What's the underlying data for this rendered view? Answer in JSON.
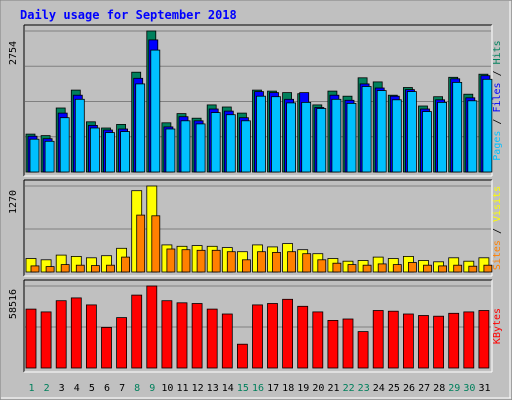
{
  "chart_data": {
    "type": "bar",
    "title": "Daily usage for September 2018",
    "days": [
      1,
      2,
      3,
      4,
      5,
      6,
      7,
      8,
      9,
      10,
      11,
      12,
      13,
      14,
      15,
      16,
      17,
      18,
      19,
      20,
      21,
      22,
      23,
      24,
      25,
      26,
      27,
      28,
      29,
      30,
      31
    ],
    "weekend_days": [
      1,
      2,
      8,
      9,
      15,
      16,
      22,
      23,
      29,
      30
    ],
    "panels": [
      {
        "id": "hits-panel",
        "ymax_label": "2754",
        "ymax": 2754,
        "legend": [
          "Pages",
          "Files",
          "Hits"
        ],
        "legend_colors": [
          "#00C0FF",
          "#0000FF",
          "#00805C"
        ],
        "series": [
          {
            "name": "Hits",
            "color": "#00805C",
            "values": [
              740,
              710,
              1250,
              1600,
              980,
              860,
              930,
              1950,
              2754,
              960,
              1140,
              1050,
              1310,
              1270,
              1150,
              1600,
              1580,
              1550,
              1530,
              1310,
              1580,
              1480,
              1840,
              1760,
              1500,
              1650,
              1290,
              1470,
              1850,
              1520,
              1910
            ]
          },
          {
            "name": "Files",
            "color": "#0000FF",
            "values": [
              700,
              650,
              1150,
              1500,
              910,
              820,
              840,
              1830,
              2580,
              880,
              1080,
              1000,
              1230,
              1190,
              1060,
              1570,
              1550,
              1420,
              1550,
              1260,
              1500,
              1400,
              1720,
              1640,
              1480,
              1610,
              1230,
              1410,
              1820,
              1450,
              1880
            ]
          },
          {
            "name": "Pages",
            "color": "#00C0FF",
            "values": [
              640,
              600,
              1060,
              1420,
              860,
              770,
              790,
              1720,
              2380,
              840,
              1000,
              940,
              1160,
              1120,
              1000,
              1480,
              1470,
              1350,
              1360,
              1240,
              1420,
              1340,
              1670,
              1590,
              1410,
              1570,
              1180,
              1360,
              1750,
              1390,
              1810
            ]
          }
        ]
      },
      {
        "id": "visits-panel",
        "ymax_label": "1270",
        "ymax": 1270,
        "legend": [
          "Sites",
          "Visits"
        ],
        "legend_colors": [
          "#FF8000",
          "#FFFF00"
        ],
        "series": [
          {
            "name": "Visits",
            "color": "#FFFF00",
            "values": [
              200,
              180,
              250,
              230,
              210,
              240,
              350,
              1200,
              1270,
              400,
              380,
              390,
              380,
              360,
              300,
              400,
              370,
              420,
              330,
              270,
              200,
              160,
              170,
              220,
              200,
              230,
              170,
              150,
              210,
              160,
              210
            ]
          },
          {
            "name": "Sites",
            "color": "#FF8000",
            "values": [
              90,
              80,
              110,
              100,
              95,
              100,
              220,
              840,
              830,
              340,
              330,
              320,
              320,
              300,
              180,
              300,
              290,
              300,
              270,
              180,
              130,
              110,
              100,
              120,
              110,
              140,
              100,
              90,
              100,
              85,
              100
            ]
          }
        ]
      },
      {
        "id": "kbytes-panel",
        "ymax_label": "58516",
        "ymax": 58516,
        "legend": [
          "KBytes"
        ],
        "legend_colors": [
          "#FF0000"
        ],
        "series": [
          {
            "name": "KBytes",
            "color": "#FF0000",
            "values": [
              42000,
              40000,
              48000,
              50000,
              45000,
              29000,
              36000,
              52000,
              58516,
              48000,
              46500,
              46000,
              42000,
              38500,
              17000,
              45000,
              46000,
              49000,
              44000,
              40000,
              34000,
              35000,
              26000,
              41000,
              40500,
              38500,
              37500,
              37000,
              39000,
              40000,
              41000
            ]
          }
        ]
      }
    ]
  }
}
